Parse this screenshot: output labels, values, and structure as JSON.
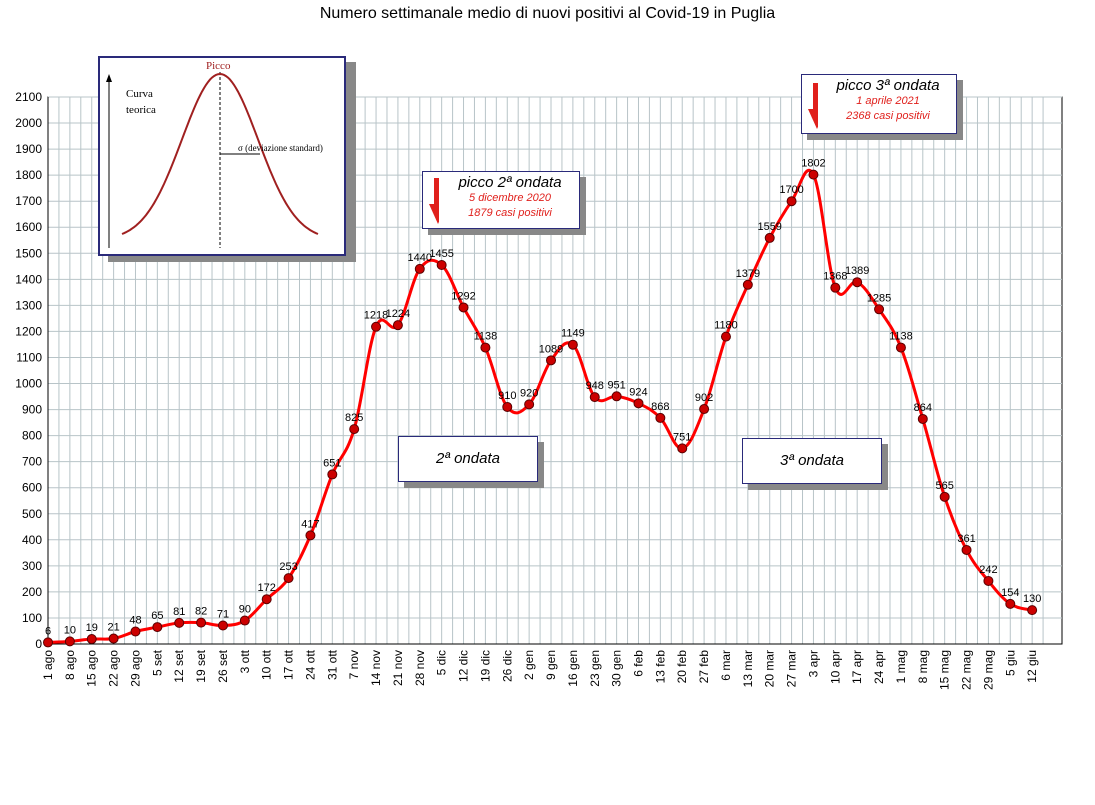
{
  "chart_data": {
    "type": "line",
    "title": "Numero settimanale medio di nuovi positivi al Covid-19 in Puglia",
    "xlabel": "",
    "ylabel": "",
    "ylim": [
      0,
      2100
    ],
    "yticks": [
      0,
      100,
      200,
      300,
      400,
      500,
      600,
      700,
      800,
      900,
      1000,
      1100,
      1200,
      1300,
      1400,
      1500,
      1600,
      1700,
      1800,
      1900,
      2000,
      2100
    ],
    "grid": true,
    "categories": [
      "1 ago",
      "8 ago",
      "15 ago",
      "22 ago",
      "29 ago",
      "5 set",
      "12 set",
      "19 set",
      "26 set",
      "3 ott",
      "10 ott",
      "17 ott",
      "24 ott",
      "31 ott",
      "7 nov",
      "14 nov",
      "21 nov",
      "28 nov",
      "5 dic",
      "12 dic",
      "19 dic",
      "26 dic",
      "2 gen",
      "9 gen",
      "16 gen",
      "23 gen",
      "30 gen",
      "6 feb",
      "13 feb",
      "20 feb",
      "27 feb",
      "6 mar",
      "13 mar",
      "20 mar",
      "27 mar",
      "3 apr",
      "10 apr",
      "17 apr",
      "24 apr",
      "1 mag",
      "8 mag",
      "15 mag",
      "22 mag",
      "29 mag",
      "5 giu",
      "12 giu"
    ],
    "values": [
      6,
      10,
      19,
      21,
      48,
      65,
      81,
      82,
      71,
      90,
      172,
      253,
      417,
      651,
      825,
      1218,
      1224,
      1440,
      1455,
      1292,
      1138,
      910,
      920,
      1089,
      1149,
      948,
      951,
      924,
      868,
      751,
      902,
      1180,
      1379,
      1559,
      1700,
      1802,
      1368,
      1389,
      1285,
      1138,
      864,
      565,
      361,
      242,
      154,
      130
    ],
    "series_color": "#ff0000",
    "marker_color": "#cc0000",
    "annotations": {
      "peak2": {
        "title": "picco 2ª ondata",
        "date": "5 dicembre 2020",
        "cases": "1879 casi positivi"
      },
      "peak3": {
        "title": "picco 3ª ondata",
        "date": "1 aprile 2021",
        "cases": "2368 casi positivi"
      },
      "wave2": "2ª ondata",
      "wave3": "3ª ondata"
    },
    "inset": {
      "peak_label": "Picco",
      "curve_label_1": "Curva",
      "curve_label_2": "teorica",
      "sigma_label": "σ  (deviazione standard)"
    }
  }
}
